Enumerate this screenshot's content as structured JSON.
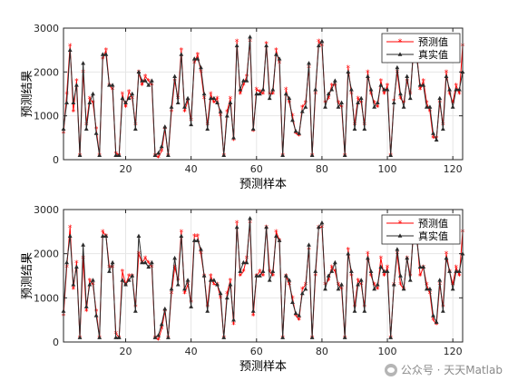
{
  "colors": {
    "predicted": "#ff0000",
    "actual": "#2b2b2b",
    "grid": "#e6e6e6",
    "axis": "#262626"
  },
  "watermark": {
    "icon": "wechat-icon",
    "text": "公众号 · 天天Matlab"
  },
  "chart_data": [
    {
      "type": "line",
      "xlabel": "预测样本",
      "ylabel": "预测结果",
      "xlim": [
        1,
        123
      ],
      "ylim": [
        0,
        3000
      ],
      "xticks": [
        20,
        40,
        60,
        80,
        100,
        120
      ],
      "yticks": [
        0,
        1000,
        2000,
        3000
      ],
      "grid": true,
      "legend": "top-right",
      "legend_entries": [
        "预测值",
        "真实值"
      ],
      "x_start": 1,
      "series": [
        {
          "name": "预测值",
          "values": [
            600,
            1500,
            2600,
            1100,
            1800,
            100,
            2000,
            800,
            1400,
            1300,
            700,
            100,
            2300,
            2500,
            1700,
            1600,
            150,
            100,
            1500,
            1200,
            1550,
            1400,
            800,
            2000,
            1700,
            1900,
            1800,
            1700,
            100,
            50,
            200,
            700,
            100,
            1100,
            1800,
            1400,
            2500,
            1100,
            1350,
            900,
            2200,
            2400,
            2000,
            1400,
            800,
            1500,
            1300,
            1400,
            1000,
            100,
            1100,
            1400,
            450,
            2700,
            1500,
            1700,
            1900,
            2700,
            650,
            1600,
            1550,
            1500,
            2650,
            1500,
            1500,
            2500,
            2200,
            100,
            1600,
            1300,
            1000,
            600,
            550,
            1200,
            1300,
            2100,
            100,
            1500,
            2700,
            2600,
            1300,
            1400,
            1700,
            1700,
            1300,
            1200,
            100,
            2100,
            1500,
            800,
            1400,
            1300,
            800,
            2000,
            1500,
            1300,
            1200,
            1800,
            1500,
            1700,
            100,
            1350,
            2000,
            1400,
            1300,
            1800,
            1500,
            2500,
            2400,
            1600,
            1800,
            1300,
            1100,
            500,
            500,
            1300,
            800,
            2000,
            1500,
            1300,
            1700,
            1500,
            2600
          ]
        },
        {
          "name": "真实值",
          "values": [
            700,
            1300,
            2500,
            1300,
            1700,
            100,
            2200,
            700,
            1300,
            1500,
            600,
            100,
            2400,
            2400,
            1700,
            1700,
            100,
            100,
            1400,
            1300,
            1400,
            1500,
            700,
            2000,
            1800,
            1800,
            1700,
            1800,
            100,
            150,
            300,
            750,
            100,
            1200,
            1900,
            1300,
            2400,
            1200,
            1400,
            800,
            2300,
            2300,
            2100,
            1500,
            700,
            1400,
            1400,
            1300,
            1100,
            100,
            1000,
            1300,
            500,
            2600,
            1600,
            1800,
            1800,
            2800,
            700,
            1500,
            1500,
            1600,
            2600,
            1400,
            1600,
            2400,
            2300,
            100,
            1500,
            1400,
            900,
            650,
            600,
            1100,
            1200,
            2200,
            100,
            1600,
            2600,
            2700,
            1200,
            1500,
            1600,
            1800,
            1200,
            1300,
            100,
            2000,
            1600,
            700,
            1300,
            1400,
            700,
            1900,
            1600,
            1200,
            1300,
            1700,
            1600,
            1600,
            100,
            1300,
            2100,
            1500,
            1200,
            1900,
            1400,
            2600,
            2300,
            1700,
            1700,
            1200,
            1200,
            600,
            450,
            1400,
            700,
            1900,
            1600,
            1200,
            1600,
            1600,
            2000
          ]
        }
      ]
    },
    {
      "type": "line",
      "xlabel": "预测样本",
      "ylabel": "预测结果",
      "xlim": [
        1,
        123
      ],
      "ylim": [
        0,
        3000
      ],
      "xticks": [
        20,
        40,
        60,
        80,
        100,
        120
      ],
      "yticks": [
        0,
        1000,
        2000,
        3000
      ],
      "grid": true,
      "legend": "top-right",
      "legend_entries": [
        "预测值",
        "真实值"
      ],
      "x_start": 1,
      "series": [
        {
          "name": "预测值",
          "values": [
            600,
            1700,
            2600,
            1200,
            1800,
            100,
            1900,
            700,
            1400,
            1300,
            700,
            100,
            2500,
            2400,
            1700,
            1700,
            200,
            100,
            1600,
            1300,
            1500,
            1500,
            800,
            2000,
            1800,
            1900,
            1800,
            1700,
            100,
            50,
            300,
            700,
            100,
            1100,
            1700,
            1400,
            2500,
            1100,
            1300,
            900,
            2400,
            2400,
            2000,
            1500,
            800,
            1500,
            1300,
            1300,
            1000,
            100,
            1100,
            1400,
            400,
            2700,
            1500,
            1600,
            1900,
            2700,
            600,
            1500,
            1600,
            1500,
            2600,
            1600,
            1500,
            2500,
            2300,
            100,
            1500,
            1300,
            1000,
            600,
            500,
            1200,
            1300,
            2100,
            100,
            1500,
            2600,
            2600,
            1300,
            1400,
            1700,
            1600,
            1300,
            1200,
            100,
            2100,
            1500,
            800,
            1400,
            1300,
            800,
            2000,
            1500,
            1300,
            1200,
            1900,
            1500,
            1700,
            100,
            1300,
            2000,
            1300,
            1200,
            1900,
            1500,
            2500,
            2400,
            1500,
            1700,
            1300,
            1100,
            500,
            400,
            1300,
            800,
            2000,
            1600,
            1300,
            1700,
            1500,
            2500
          ]
        },
        {
          "name": "真实值",
          "values": [
            700,
            1800,
            2400,
            1300,
            1700,
            100,
            2200,
            800,
            1300,
            1400,
            600,
            100,
            2400,
            2400,
            1600,
            1800,
            100,
            100,
            1400,
            1300,
            1400,
            1500,
            700,
            2400,
            1800,
            1800,
            1700,
            1800,
            100,
            150,
            400,
            750,
            100,
            1200,
            1900,
            1300,
            2400,
            1200,
            1400,
            800,
            2300,
            2300,
            2100,
            1500,
            700,
            1400,
            1400,
            1300,
            1100,
            100,
            1000,
            1300,
            500,
            2600,
            1600,
            1800,
            1800,
            2800,
            700,
            1500,
            1500,
            1600,
            2600,
            1400,
            1600,
            2400,
            2300,
            100,
            1500,
            1400,
            900,
            650,
            600,
            1100,
            1200,
            2200,
            100,
            1600,
            2600,
            2700,
            1200,
            1500,
            1600,
            1800,
            1200,
            1300,
            100,
            2000,
            1600,
            700,
            1300,
            1400,
            700,
            1900,
            1600,
            1200,
            1300,
            1700,
            1600,
            1600,
            100,
            1300,
            2100,
            1500,
            1200,
            1900,
            1400,
            2600,
            2300,
            1700,
            1700,
            1200,
            1200,
            600,
            450,
            1400,
            700,
            1900,
            1600,
            1200,
            1600,
            1600,
            2000
          ]
        }
      ]
    }
  ]
}
